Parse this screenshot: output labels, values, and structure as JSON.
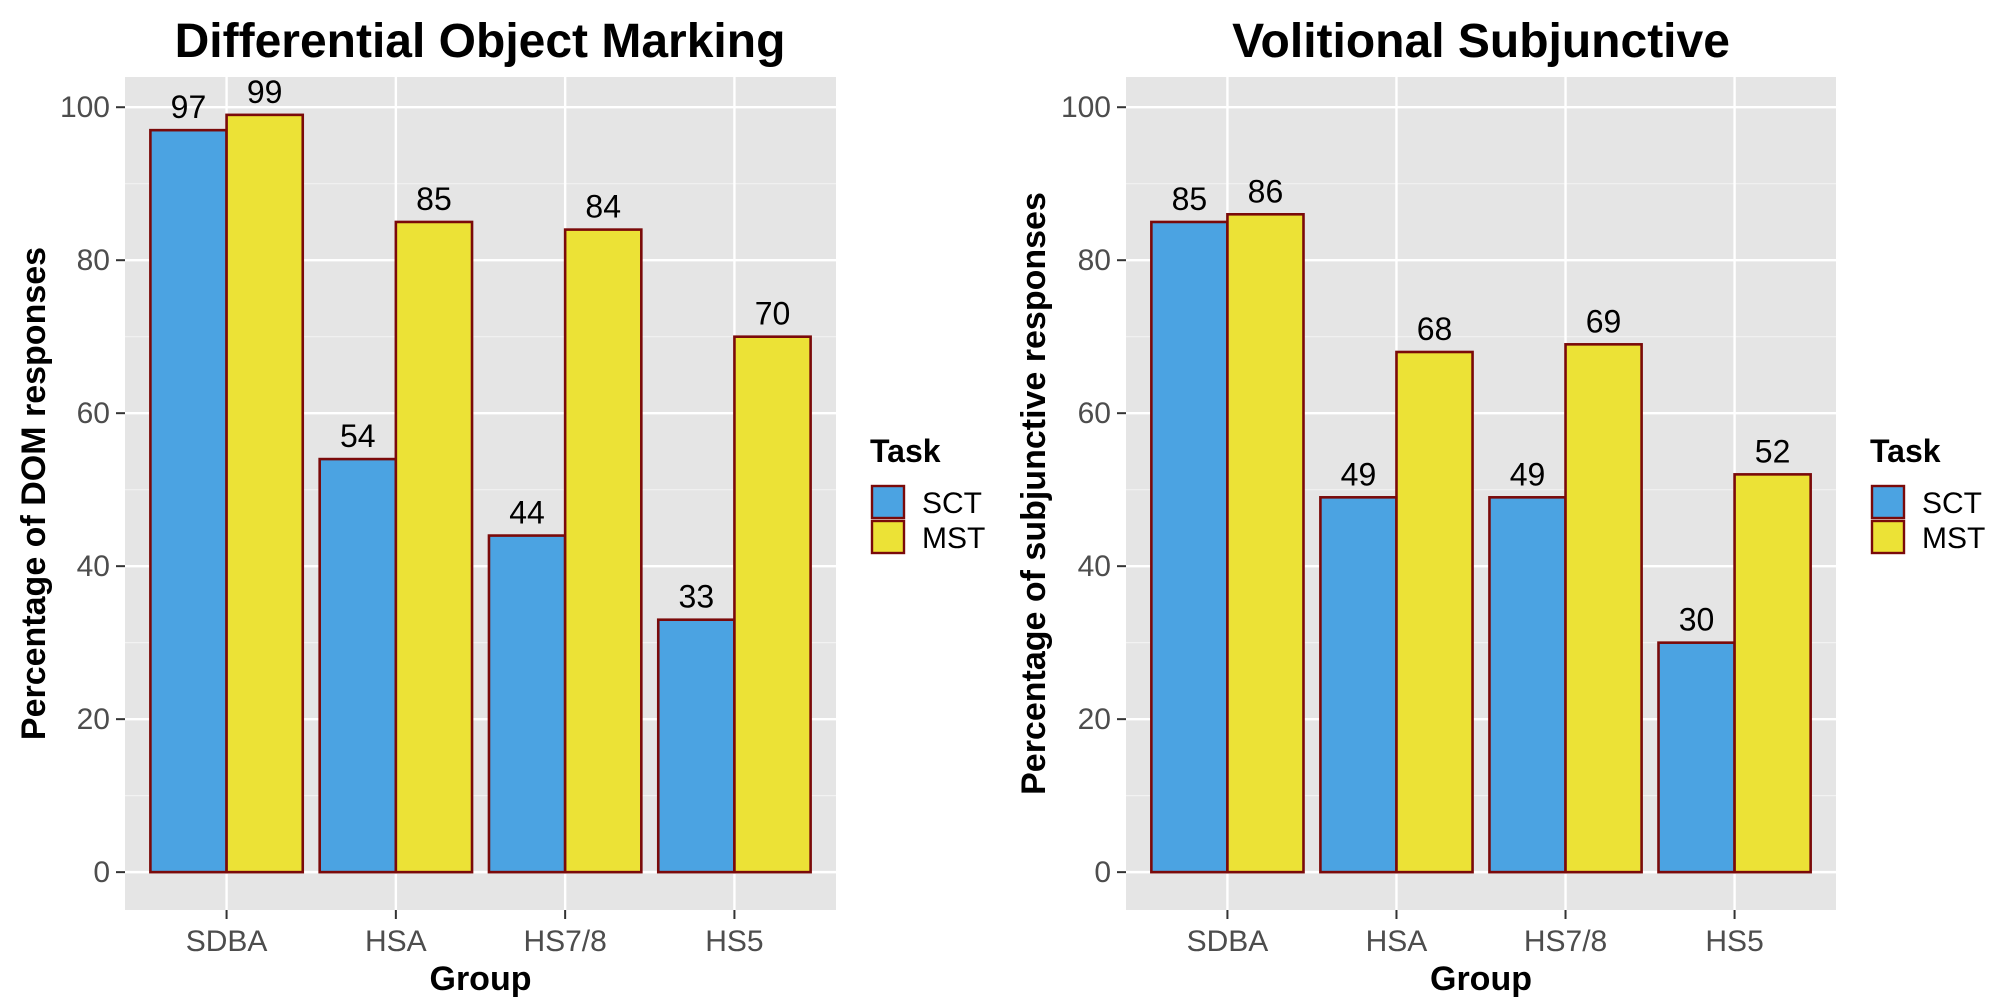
{
  "chart_data": [
    {
      "type": "bar",
      "title": "Differential Object Marking",
      "xlabel": "Group",
      "ylabel": "Percentage of DOM responses",
      "categories": [
        "SDBA",
        "HSA",
        "HS7/8",
        "HS5"
      ],
      "series": [
        {
          "name": "SCT",
          "values": [
            97,
            54,
            44,
            33
          ],
          "color": "#4BA3E2"
        },
        {
          "name": "MST",
          "values": [
            99,
            85,
            84,
            70
          ],
          "color": "#ECE236"
        }
      ],
      "ylim": [
        -4.95,
        103.95
      ],
      "yticks": [
        0,
        20,
        40,
        60,
        80,
        100
      ],
      "grid": true,
      "legend": {
        "title": "Task",
        "position": "right"
      },
      "bar_outline_color": "#7A0A0A",
      "panel_color": "#E5E5E5"
    },
    {
      "type": "bar",
      "title": "Volitional Subjunctive",
      "xlabel": "Group",
      "ylabel": "Percentage of subjunctive responses",
      "categories": [
        "SDBA",
        "HSA",
        "HS7/8",
        "HS5"
      ],
      "series": [
        {
          "name": "SCT",
          "values": [
            85,
            49,
            49,
            30
          ],
          "color": "#4BA3E2"
        },
        {
          "name": "MST",
          "values": [
            86,
            68,
            69,
            52
          ],
          "color": "#ECE236"
        }
      ],
      "ylim": [
        -4.95,
        103.95
      ],
      "yticks": [
        0,
        20,
        40,
        60,
        80,
        100
      ],
      "grid": true,
      "legend": {
        "title": "Task",
        "position": "right"
      },
      "bar_outline_color": "#7A0A0A",
      "panel_color": "#E5E5E5"
    }
  ]
}
